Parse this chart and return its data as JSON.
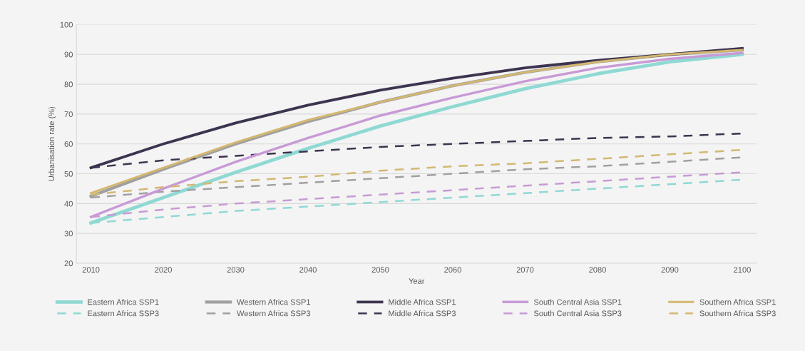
{
  "chart_data": {
    "type": "line",
    "xlabel": "Year",
    "ylabel": "Urbanisation rate (%)",
    "x": [
      2010,
      2020,
      2030,
      2040,
      2050,
      2060,
      2070,
      2080,
      2090,
      2100
    ],
    "xlim": [
      2008,
      2102
    ],
    "xticks": [
      2010,
      2020,
      2030,
      2040,
      2050,
      2060,
      2070,
      2080,
      2090,
      2100
    ],
    "ylim": [
      20,
      100
    ],
    "yticks": [
      20,
      30,
      40,
      50,
      60,
      70,
      80,
      90,
      100
    ],
    "grid": "y",
    "legend": "bottom",
    "marker": "none",
    "series": [
      {
        "name": "Eastern Africa SSP1",
        "color": "#8fd9d3",
        "line_style": "solid",
        "values": [
          33.5,
          42,
          50.5,
          58.5,
          66,
          72.5,
          78.5,
          83.5,
          87.5,
          90
        ]
      },
      {
        "name": "Eastern Africa SSP3",
        "color": "#8fd9d3",
        "line_style": "dashed",
        "values": [
          33.5,
          35.5,
          37.5,
          39,
          40.5,
          42,
          43.5,
          45,
          46.5,
          48
        ]
      },
      {
        "name": "Western Africa SSP1",
        "color": "#a0a0a0",
        "line_style": "solid",
        "values": [
          42.5,
          51.5,
          60,
          67.5,
          74,
          79.5,
          84,
          87.5,
          90,
          91.5
        ]
      },
      {
        "name": "Western Africa SSP3",
        "color": "#a0a0a0",
        "line_style": "dashed",
        "values": [
          42,
          44,
          45.5,
          47,
          48.5,
          50,
          51.5,
          52.5,
          54,
          55.5
        ]
      },
      {
        "name": "Middle Africa SSP1",
        "color": "#3d3450",
        "line_style": "solid",
        "values": [
          52,
          60,
          67,
          73,
          78,
          82,
          85.5,
          88,
          90,
          92
        ]
      },
      {
        "name": "Middle Africa SSP3",
        "color": "#3d3450",
        "line_style": "dashed",
        "values": [
          52,
          54.5,
          56,
          57.5,
          59,
          60,
          61,
          62,
          62.5,
          63.5
        ]
      },
      {
        "name": "South Central Asia SSP1",
        "color": "#c89ad6",
        "line_style": "solid",
        "values": [
          35.5,
          45,
          54,
          62,
          69.5,
          75.5,
          81,
          85.5,
          88.5,
          90.5
        ]
      },
      {
        "name": "South Central Asia SSP3",
        "color": "#c89ad6",
        "line_style": "dashed",
        "values": [
          35.5,
          38,
          40,
          41.5,
          43,
          44.5,
          46,
          47.5,
          49,
          50.5
        ]
      },
      {
        "name": "Southern Africa SSP1",
        "color": "#d4b870",
        "line_style": "solid",
        "values": [
          43.5,
          52,
          60.5,
          68,
          74,
          79.5,
          84,
          87.5,
          90,
          91.5
        ]
      },
      {
        "name": "Southern Africa SSP3",
        "color": "#d4b870",
        "line_style": "dashed",
        "values": [
          43,
          45.5,
          47.5,
          49,
          51,
          52.5,
          53.5,
          55,
          56.5,
          58
        ]
      }
    ]
  }
}
